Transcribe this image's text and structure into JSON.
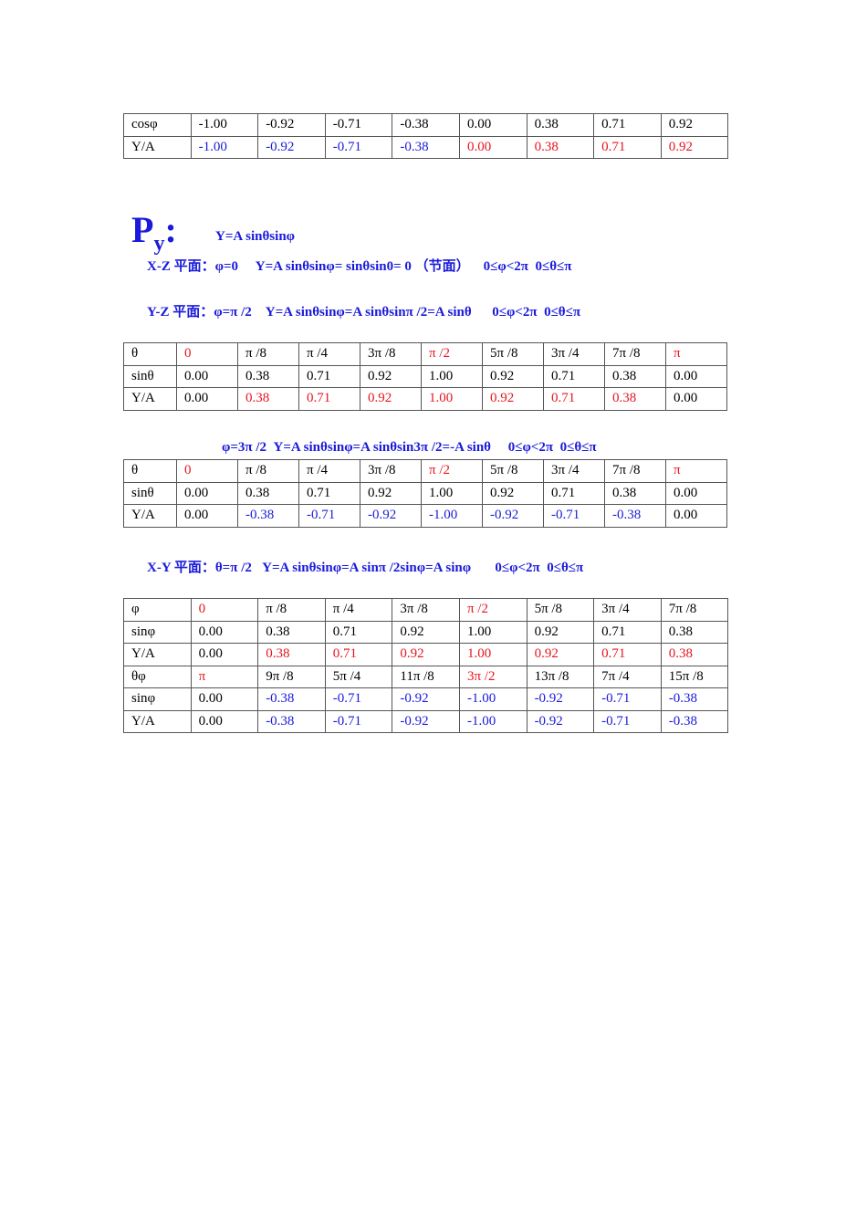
{
  "colors": {
    "k": "#000000",
    "r": "#e8141c",
    "b": "#1a1adb"
  },
  "table1": [
    {
      "cells": [
        "cosφ",
        "-1.00",
        "-0.92",
        "-0.71",
        "-0.38",
        "0.00",
        "0.38",
        "0.71",
        "0.92"
      ],
      "colors": "kkkkkkkkk"
    },
    {
      "cells": [
        "Y/A",
        "-1.00",
        "-0.92",
        "-0.71",
        "-0.38",
        "0.00",
        "0.38",
        "0.71",
        "0.92"
      ],
      "colors": "kbbbbrrrr"
    }
  ],
  "heading": {
    "symbol": "P",
    "subscript": "y",
    "colon": ":",
    "formula": "Y=A sinθsinφ"
  },
  "xz_line": "X-Z 平面：φ=0     Y=A sinθsinφ= sinθsin0= 0 （节面）    0≤φ<2π  0≤θ≤π",
  "yz_line": "Y-Z 平面：φ=π /2    Y=A sinθsinφ=A sinθsinπ /2=A sinθ      0≤φ<2π  0≤θ≤π",
  "table2": [
    {
      "cells": [
        "θ",
        "0",
        "π /8",
        "π /4",
        "3π /8",
        "π /2",
        "5π /8",
        "3π /4",
        "7π /8",
        "π"
      ],
      "colors": "krkkkrkkkr"
    },
    {
      "cells": [
        "sinθ",
        "0.00",
        "0.38",
        "0.71",
        "0.92",
        "1.00",
        "0.92",
        "0.71",
        "0.38",
        "0.00"
      ],
      "colors": "kkkkkkkkkk"
    },
    {
      "cells": [
        "Y/A",
        "0.00",
        "0.38",
        "0.71",
        "0.92",
        "1.00",
        "0.92",
        "0.71",
        "0.38",
        "0.00"
      ],
      "colors": "kkrrrrrrrk"
    }
  ],
  "phi3_line": "φ=3π /2  Y=A sinθsinφ=A sinθsin3π /2=-A sinθ     0≤φ<2π  0≤θ≤π",
  "table3": [
    {
      "cells": [
        "θ",
        "0",
        "π /8",
        "π /4",
        "3π /8",
        "π /2",
        "5π /8",
        "3π /4",
        "7π /8",
        "π"
      ],
      "colors": "krkkkrkkkr"
    },
    {
      "cells": [
        "sinθ",
        "0.00",
        "0.38",
        "0.71",
        "0.92",
        "1.00",
        "0.92",
        "0.71",
        "0.38",
        "0.00"
      ],
      "colors": "kkkkkkkkkk"
    },
    {
      "cells": [
        "Y/A",
        "0.00",
        "-0.38",
        "-0.71",
        "-0.92",
        "-1.00",
        "-0.92",
        "-0.71",
        "-0.38",
        "0.00"
      ],
      "colors": "kkbbbbbbbk"
    }
  ],
  "xy_line": "X-Y 平面：θ=π /2   Y=A sinθsinφ=A sinπ /2sinφ=A sinφ       0≤φ<2π  0≤θ≤π",
  "table4": [
    {
      "cells": [
        "φ",
        "0",
        "π /8",
        "π /4",
        "3π /8",
        "π /2",
        "5π /8",
        "3π /4",
        "7π /8"
      ],
      "colors": "krkkkrkkk"
    },
    {
      "cells": [
        "sinφ",
        "0.00",
        "0.38",
        "0.71",
        "0.92",
        "1.00",
        "0.92",
        "0.71",
        "0.38"
      ],
      "colors": "kkkkkkkkk"
    },
    {
      "cells": [
        "Y/A",
        "0.00",
        "0.38",
        "0.71",
        "0.92",
        "1.00",
        "0.92",
        "0.71",
        "0.38"
      ],
      "colors": "kkrrrrrrr"
    },
    {
      "cells": [
        "θφ",
        "π",
        "9π /8",
        "5π /4",
        "11π /8",
        "3π /2",
        "13π /8",
        "7π /4",
        "15π /8"
      ],
      "colors": "krkkkrkkk"
    },
    {
      "cells": [
        "sinφ",
        "0.00",
        "-0.38",
        "-0.71",
        "-0.92",
        "-1.00",
        "-0.92",
        "-0.71",
        "-0.38"
      ],
      "colors": "kkbbbbbbb"
    },
    {
      "cells": [
        "Y/A",
        "0.00",
        "-0.38",
        "-0.71",
        "-0.92",
        "-1.00",
        "-0.92",
        "-0.71",
        "-0.38"
      ],
      "colors": "kkbbbbbbb"
    }
  ]
}
